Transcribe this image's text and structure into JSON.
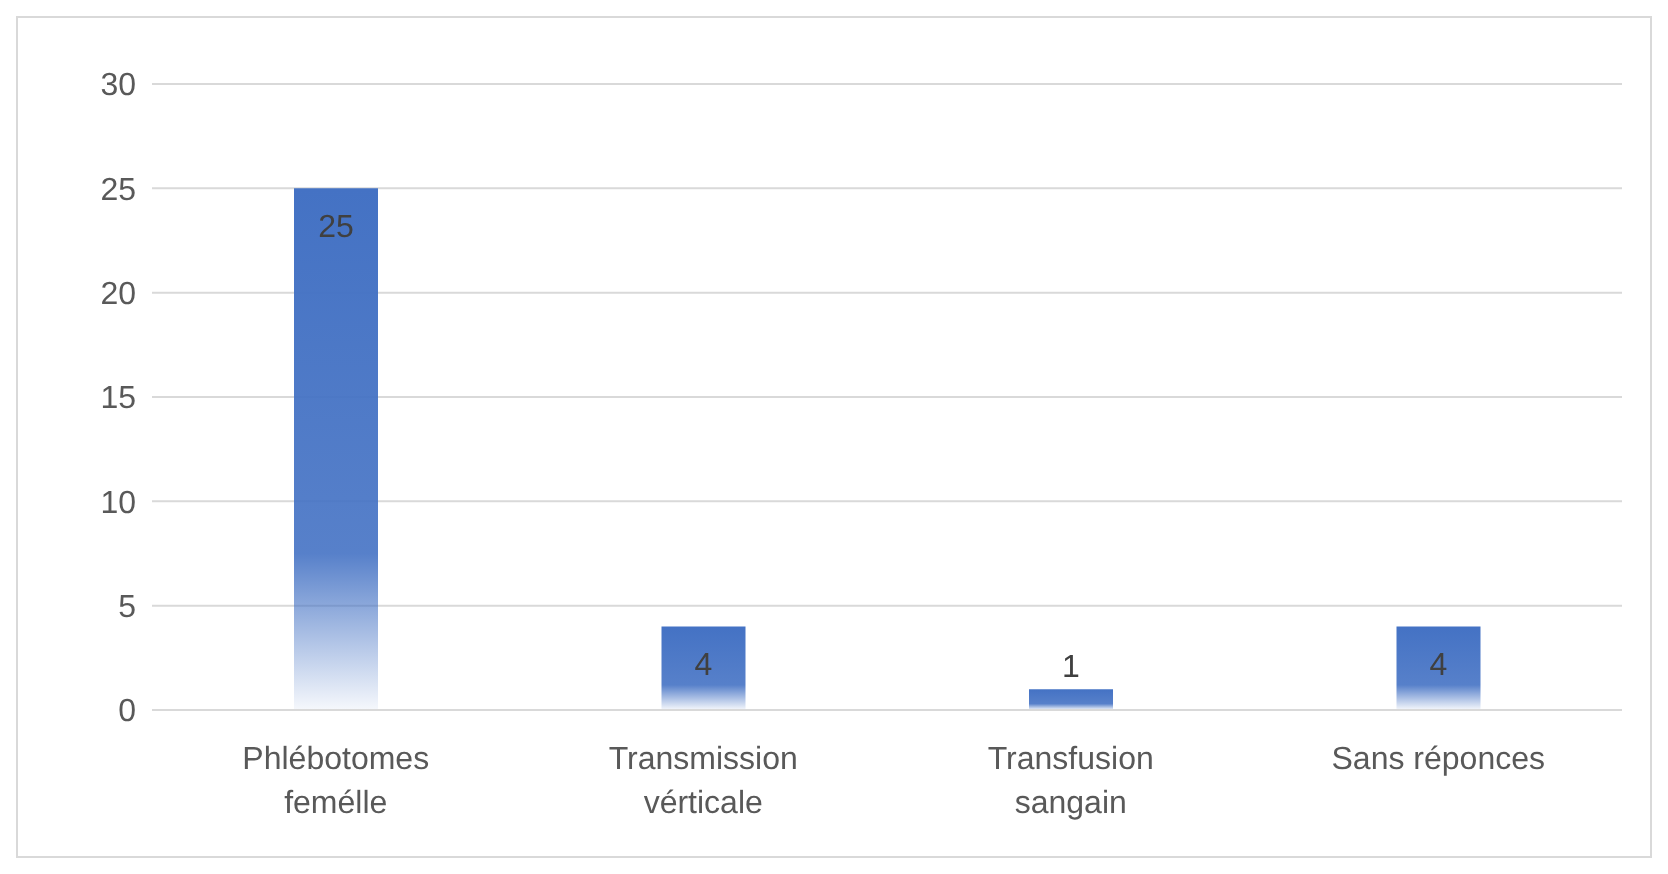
{
  "chart_data": {
    "type": "bar",
    "categories": [
      "Phlébotomes femélle",
      "Transmission vérticale",
      "Transfusion sangain",
      "Sans réponces"
    ],
    "values": [
      25,
      4,
      1,
      4
    ],
    "color": "#4472c4",
    "ylim": [
      0,
      30
    ],
    "yticks": [
      0,
      5,
      10,
      15,
      20,
      25,
      30
    ],
    "grid": "y",
    "data_labels": true,
    "legend": false
  }
}
